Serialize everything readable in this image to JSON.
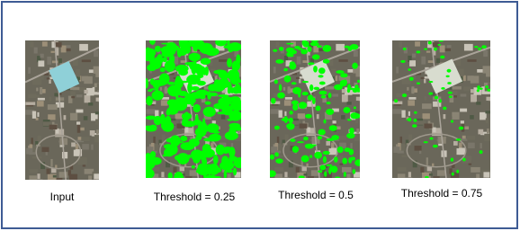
{
  "captions": [
    "Input",
    "Threshold = 0.25",
    "Threshold = 0.5",
    "Threshold = 0.75"
  ]
}
